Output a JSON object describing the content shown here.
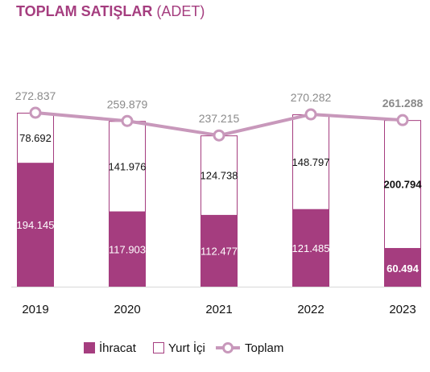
{
  "title": {
    "main": "TOPLAM SATIŞLAR",
    "sub": "(ADET)"
  },
  "colors": {
    "export": "#a53d7f",
    "domestic_border": "#a53d7f",
    "total_line": "#c898bb",
    "total_label": "#8a8a8a"
  },
  "chart_data": {
    "type": "bar",
    "stacked": true,
    "categories": [
      "2019",
      "2020",
      "2021",
      "2022",
      "2023"
    ],
    "series": [
      {
        "name": "İhracat",
        "values": [
          194145,
          117903,
          112477,
          121485,
          60494
        ],
        "labels": [
          "194.145",
          "117.903",
          "112.477",
          "121.485",
          "60.494"
        ]
      },
      {
        "name": "Yurt İçi",
        "values": [
          78692,
          141976,
          124738,
          148797,
          200794
        ],
        "labels": [
          "78.692",
          "141.976",
          "124.738",
          "148.797",
          "200.794"
        ]
      },
      {
        "name": "Toplam",
        "type": "line",
        "values": [
          272837,
          259879,
          237215,
          270282,
          261288
        ],
        "labels": [
          "272.837",
          "259.879",
          "237.215",
          "270.282",
          "261.288"
        ]
      }
    ],
    "ylim": [
      0,
      272837
    ],
    "grid": false,
    "legend": "bottom"
  }
}
